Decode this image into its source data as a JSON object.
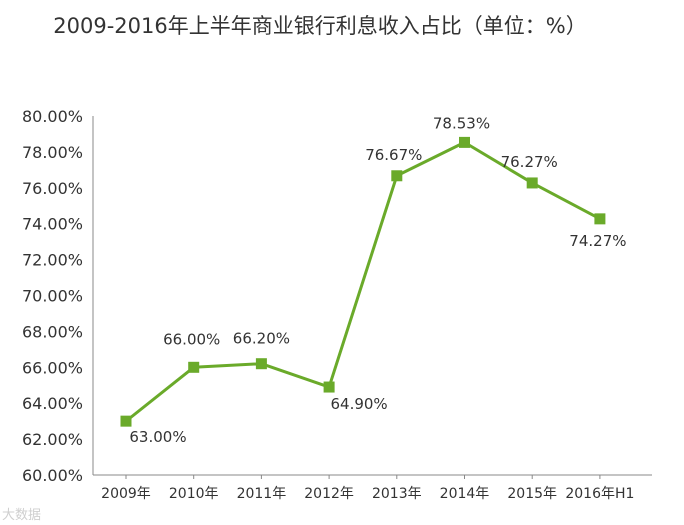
{
  "chart_data": {
    "type": "line",
    "title": "2009-2016年上半年商业银行利息收入占比（单位：%）",
    "categories": [
      "2009年",
      "2010年",
      "2011年",
      "2012年",
      "2013年",
      "2014年",
      "2015年",
      "2016年H1"
    ],
    "series": [
      {
        "values": [
          63.0,
          66.0,
          66.2,
          64.9,
          76.67,
          78.53,
          76.27,
          74.27
        ],
        "labels": [
          "63.00%",
          "66.00%",
          "66.20%",
          "64.90%",
          "76.67%",
          "78.53%",
          "76.27%",
          "74.27%"
        ],
        "color": "#6aaa2a"
      }
    ],
    "ylim": [
      60,
      80
    ],
    "yticks": [
      "60.00%",
      "62.00%",
      "64.00%",
      "66.00%",
      "68.00%",
      "70.00%",
      "72.00%",
      "74.00%",
      "76.00%",
      "78.00%",
      "80.00%"
    ],
    "grid": false,
    "legend": "none"
  },
  "watermark": "大数据"
}
